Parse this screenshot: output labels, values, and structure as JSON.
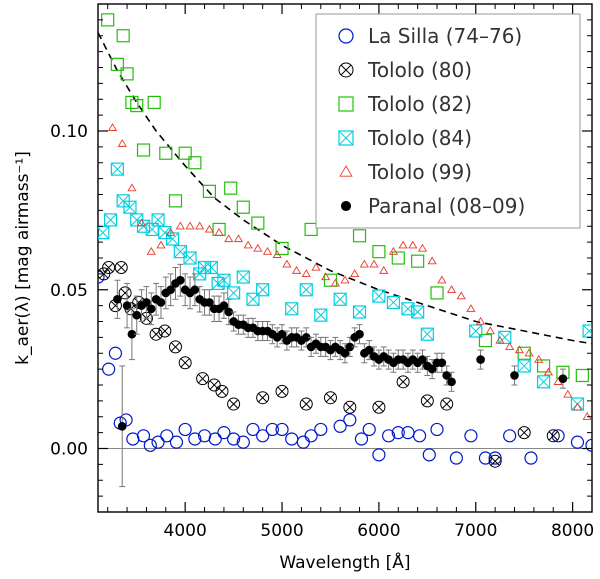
{
  "chart_data": {
    "type": "scatter",
    "xlabel": "Wavelength [Å]",
    "ylabel": "k_aer(λ) [mag airmass⁻¹]",
    "xlim": [
      3100,
      8200
    ],
    "ylim": [
      -0.02,
      0.14
    ],
    "xticks": [
      4000,
      5000,
      6000,
      7000,
      8000
    ],
    "yticks": [
      0.0,
      0.05,
      0.1
    ],
    "ytick_labels": [
      "0.00",
      "0.05",
      "0.10"
    ],
    "xtick_labels": [
      "4000",
      "5000",
      "6000",
      "7000",
      "8000"
    ],
    "legend_position": "top-right",
    "grid": false,
    "reference_line": {
      "name": "",
      "y": 0.0,
      "color": "#888888"
    },
    "fit_curve": {
      "style": "dashed",
      "color": "#000000",
      "x": [
        3100,
        3300,
        3500,
        3700,
        4000,
        4300,
        4600,
        5000,
        5500,
        6000,
        6500,
        7000,
        7500,
        8000,
        8200
      ],
      "y": [
        0.131,
        0.119,
        0.109,
        0.1,
        0.089,
        0.079,
        0.072,
        0.064,
        0.056,
        0.05,
        0.045,
        0.04,
        0.037,
        0.034,
        0.033
      ]
    },
    "series": [
      {
        "name": "La Silla (74–76)",
        "marker": "circle-open",
        "color": "#0018cc",
        "x": [
          3100,
          3210,
          3280,
          3330,
          3390,
          3460,
          3570,
          3640,
          3720,
          3810,
          3910,
          4000,
          4100,
          4200,
          4310,
          4400,
          4500,
          4600,
          4700,
          4800,
          4900,
          5000,
          5100,
          5220,
          5300,
          5400,
          5600,
          5700,
          5820,
          5900,
          6000,
          6100,
          6200,
          6300,
          6420,
          6520,
          6600,
          6800,
          6950,
          7100,
          7200,
          7350,
          7570,
          7850,
          8050,
          8200
        ],
        "y": [
          0.054,
          0.025,
          0.03,
          0.008,
          0.009,
          0.003,
          0.004,
          0.001,
          0.002,
          0.004,
          0.002,
          0.006,
          0.003,
          0.004,
          0.003,
          0.005,
          0.003,
          0.002,
          0.006,
          0.004,
          0.006,
          0.006,
          0.003,
          0.002,
          0.004,
          0.006,
          0.007,
          0.009,
          0.003,
          0.006,
          -0.002,
          0.004,
          0.005,
          0.005,
          0.004,
          -0.002,
          0.006,
          -0.003,
          0.004,
          -0.003,
          -0.003,
          0.004,
          -0.003,
          0.004,
          0.002,
          0.001
        ]
      },
      {
        "name": "Tololo (80)",
        "marker": "circle-cross",
        "color": "#000000",
        "x": [
          3160,
          3210,
          3280,
          3340,
          3380,
          3440,
          3520,
          3600,
          3700,
          3790,
          3900,
          4000,
          4180,
          4300,
          4380,
          4500,
          4800,
          5000,
          5250,
          5500,
          5700,
          6000,
          6250,
          6500,
          6700,
          7200,
          7500,
          7800
        ],
        "y": [
          0.055,
          0.057,
          0.045,
          0.057,
          0.049,
          0.044,
          0.046,
          0.041,
          0.036,
          0.037,
          0.032,
          0.027,
          0.022,
          0.02,
          0.018,
          0.014,
          0.016,
          0.018,
          0.014,
          0.016,
          0.013,
          0.013,
          0.021,
          0.015,
          0.014,
          -0.004,
          0.005,
          0.004
        ]
      },
      {
        "name": "Tololo (82)",
        "marker": "square-open",
        "color": "#22c00a",
        "x": [
          3200,
          3300,
          3360,
          3400,
          3450,
          3500,
          3570,
          3680,
          3800,
          3900,
          4000,
          4100,
          4250,
          4350,
          4470,
          4600,
          4750,
          5000,
          5300,
          5500,
          5800,
          6000,
          6200,
          6400,
          6600,
          7100,
          7500,
          7700,
          7900,
          8100
        ],
        "y": [
          0.135,
          0.121,
          0.13,
          0.118,
          0.109,
          0.108,
          0.094,
          0.109,
          0.093,
          0.078,
          0.093,
          0.09,
          0.081,
          0.069,
          0.082,
          0.076,
          0.071,
          0.063,
          0.069,
          0.053,
          0.067,
          0.062,
          0.06,
          0.059,
          0.049,
          0.034,
          0.03,
          0.026,
          0.024,
          0.023
        ]
      },
      {
        "name": "Tololo (84)",
        "marker": "square-cross",
        "color": "#00cfe0",
        "x": [
          3150,
          3230,
          3300,
          3360,
          3430,
          3500,
          3570,
          3660,
          3720,
          3790,
          3870,
          3950,
          4050,
          4150,
          4200,
          4270,
          4340,
          4400,
          4500,
          4600,
          4700,
          4800,
          5100,
          5250,
          5400,
          5600,
          5800,
          6000,
          6150,
          6300,
          6400,
          6500,
          7000,
          7300,
          7500,
          7700,
          8050,
          8170
        ],
        "y": [
          0.068,
          0.072,
          0.088,
          0.078,
          0.076,
          0.072,
          0.07,
          0.069,
          0.072,
          0.068,
          0.066,
          0.062,
          0.06,
          0.055,
          0.057,
          0.057,
          0.052,
          0.053,
          0.049,
          0.054,
          0.047,
          0.05,
          0.044,
          0.05,
          0.042,
          0.047,
          0.043,
          0.048,
          0.046,
          0.044,
          0.043,
          0.036,
          0.037,
          0.035,
          0.026,
          0.021,
          0.014,
          0.037
        ]
      },
      {
        "name": "Tololo (99)",
        "marker": "triangle-open",
        "color": "#e83a2c",
        "x": [
          3250,
          3350,
          3450,
          3550,
          3650,
          3750,
          3850,
          3950,
          4050,
          4150,
          4250,
          4350,
          4450,
          4550,
          4650,
          4750,
          4850,
          4950,
          5050,
          5150,
          5250,
          5350,
          5450,
          5550,
          5650,
          5750,
          5850,
          5950,
          6050,
          6150,
          6250,
          6350,
          6450,
          6550,
          6650,
          6750,
          6850,
          6950,
          7050,
          7150,
          7250,
          7350,
          7450,
          7550,
          7650,
          7750,
          7850,
          7950,
          8050,
          8150
        ],
        "y": [
          0.101,
          0.096,
          0.082,
          0.071,
          0.062,
          0.064,
          0.068,
          0.07,
          0.07,
          0.07,
          0.069,
          0.068,
          0.066,
          0.066,
          0.064,
          0.063,
          0.062,
          0.061,
          0.058,
          0.056,
          0.055,
          0.057,
          0.054,
          0.052,
          0.053,
          0.055,
          0.058,
          0.058,
          0.056,
          0.062,
          0.064,
          0.064,
          0.063,
          0.059,
          0.053,
          0.05,
          0.048,
          0.044,
          0.04,
          0.037,
          0.034,
          0.032,
          0.031,
          0.03,
          0.028,
          0.024,
          0.021,
          0.017,
          0.013,
          0.01
        ]
      },
      {
        "name": "Paranal (08–09)",
        "marker": "circle-filled",
        "color": "#000000",
        "error_bars": true,
        "x": [
          3300,
          3350,
          3400,
          3450,
          3500,
          3550,
          3600,
          3650,
          3700,
          3750,
          3800,
          3850,
          3900,
          3950,
          4000,
          4050,
          4100,
          4150,
          4200,
          4250,
          4300,
          4350,
          4400,
          4450,
          4500,
          4550,
          4600,
          4650,
          4700,
          4750,
          4800,
          4850,
          4900,
          4950,
          5000,
          5050,
          5100,
          5150,
          5200,
          5250,
          5300,
          5350,
          5400,
          5450,
          5500,
          5550,
          5600,
          5650,
          5700,
          5750,
          5800,
          5850,
          5900,
          5950,
          6000,
          6050,
          6100,
          6150,
          6200,
          6250,
          6300,
          6350,
          6400,
          6450,
          6500,
          6550,
          6600,
          6650,
          6700,
          6750,
          7050,
          7400,
          7900
        ],
        "y": [
          0.047,
          0.007,
          0.045,
          0.036,
          0.042,
          0.045,
          0.046,
          0.044,
          0.047,
          0.046,
          0.049,
          0.05,
          0.052,
          0.053,
          0.05,
          0.049,
          0.05,
          0.047,
          0.046,
          0.046,
          0.044,
          0.044,
          0.045,
          0.043,
          0.04,
          0.039,
          0.039,
          0.038,
          0.038,
          0.037,
          0.037,
          0.037,
          0.036,
          0.035,
          0.036,
          0.034,
          0.035,
          0.035,
          0.034,
          0.035,
          0.032,
          0.033,
          0.032,
          0.032,
          0.031,
          0.032,
          0.031,
          0.03,
          0.032,
          0.035,
          0.036,
          0.03,
          0.031,
          0.029,
          0.028,
          0.029,
          0.028,
          0.027,
          0.028,
          0.028,
          0.027,
          0.028,
          0.027,
          0.028,
          0.026,
          0.025,
          0.027,
          0.027,
          0.023,
          0.021,
          0.028,
          0.023,
          0.022
        ],
        "yerr": [
          0.006,
          0.019,
          0.007,
          0.008,
          0.006,
          0.005,
          0.005,
          0.005,
          0.005,
          0.005,
          0.005,
          0.005,
          0.005,
          0.005,
          0.005,
          0.005,
          0.005,
          0.004,
          0.004,
          0.004,
          0.004,
          0.004,
          0.004,
          0.004,
          0.003,
          0.003,
          0.003,
          0.003,
          0.003,
          0.003,
          0.003,
          0.003,
          0.003,
          0.003,
          0.003,
          0.003,
          0.003,
          0.003,
          0.003,
          0.003,
          0.003,
          0.003,
          0.003,
          0.003,
          0.003,
          0.003,
          0.003,
          0.003,
          0.003,
          0.003,
          0.003,
          0.003,
          0.003,
          0.003,
          0.003,
          0.003,
          0.003,
          0.003,
          0.003,
          0.003,
          0.003,
          0.003,
          0.003,
          0.003,
          0.003,
          0.003,
          0.003,
          0.003,
          0.003,
          0.003,
          0.003,
          0.003,
          0.003
        ]
      }
    ]
  }
}
